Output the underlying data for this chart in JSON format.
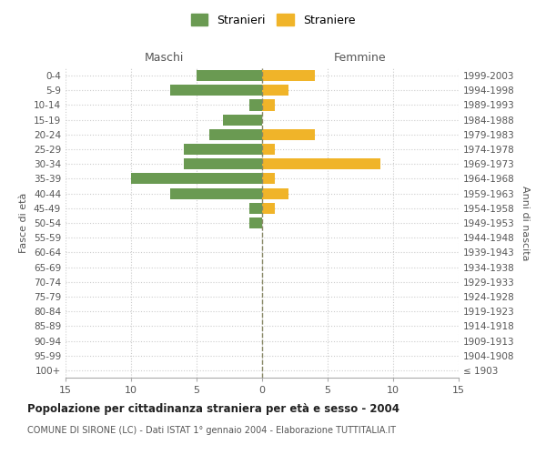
{
  "age_groups": [
    "100+",
    "95-99",
    "90-94",
    "85-89",
    "80-84",
    "75-79",
    "70-74",
    "65-69",
    "60-64",
    "55-59",
    "50-54",
    "45-49",
    "40-44",
    "35-39",
    "30-34",
    "25-29",
    "20-24",
    "15-19",
    "10-14",
    "5-9",
    "0-4"
  ],
  "birth_years": [
    "≤ 1903",
    "1904-1908",
    "1909-1913",
    "1914-1918",
    "1919-1923",
    "1924-1928",
    "1929-1933",
    "1934-1938",
    "1939-1943",
    "1944-1948",
    "1949-1953",
    "1954-1958",
    "1959-1963",
    "1964-1968",
    "1969-1973",
    "1974-1978",
    "1979-1983",
    "1984-1988",
    "1989-1993",
    "1994-1998",
    "1999-2003"
  ],
  "maschi": [
    0,
    0,
    0,
    0,
    0,
    0,
    0,
    0,
    0,
    0,
    1,
    1,
    7,
    10,
    6,
    6,
    4,
    3,
    1,
    7,
    5
  ],
  "femmine": [
    0,
    0,
    0,
    0,
    0,
    0,
    0,
    0,
    0,
    0,
    0,
    1,
    2,
    1,
    9,
    1,
    4,
    0,
    1,
    2,
    4
  ],
  "color_maschi": "#6a9a52",
  "color_femmine": "#f0b429",
  "title": "Popolazione per cittadinanza straniera per età e sesso - 2004",
  "subtitle": "COMUNE DI SIRONE (LC) - Dati ISTAT 1° gennaio 2004 - Elaborazione TUTTITALIA.IT",
  "ylabel_left": "Fasce di età",
  "ylabel_right": "Anni di nascita",
  "xlabel_left": "Maschi",
  "xlabel_right": "Femmine",
  "legend_maschi": "Stranieri",
  "legend_femmine": "Straniere",
  "xlim": 15,
  "bg_color": "#ffffff",
  "grid_color": "#cccccc"
}
